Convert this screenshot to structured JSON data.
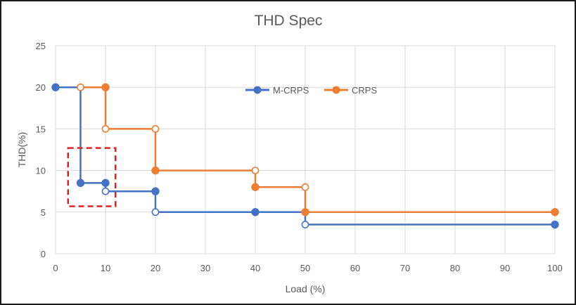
{
  "chart_data": {
    "type": "line",
    "title": "THD Spec",
    "xlabel": "Load (%)",
    "ylabel": "THD(%)",
    "xlim": [
      0,
      100
    ],
    "ylim": [
      0,
      25
    ],
    "x_ticks": [
      0,
      10,
      20,
      30,
      40,
      50,
      60,
      70,
      80,
      90,
      100
    ],
    "y_ticks": [
      0,
      5,
      10,
      15,
      20,
      25
    ],
    "grid": true,
    "legend_position": "top-center",
    "series": [
      {
        "name": "M-CRPS",
        "color": "#4472C4",
        "line": [
          [
            0,
            20
          ],
          [
            5,
            20
          ],
          [
            5,
            8.5
          ],
          [
            10,
            8.5
          ],
          [
            10,
            7.5
          ],
          [
            20,
            7.5
          ],
          [
            20,
            5
          ],
          [
            50,
            5
          ],
          [
            50,
            3.5
          ],
          [
            100,
            3.5
          ]
        ],
        "markers": [
          {
            "x": 0,
            "y": 20,
            "filled": true
          },
          {
            "x": 5,
            "y": 8.5,
            "filled": true
          },
          {
            "x": 10,
            "y": 8.5,
            "filled": true
          },
          {
            "x": 10,
            "y": 7.5,
            "filled": false
          },
          {
            "x": 20,
            "y": 7.5,
            "filled": true
          },
          {
            "x": 20,
            "y": 5,
            "filled": false
          },
          {
            "x": 40,
            "y": 5,
            "filled": true
          },
          {
            "x": 50,
            "y": 3.5,
            "filled": false
          },
          {
            "x": 100,
            "y": 3.5,
            "filled": true
          }
        ]
      },
      {
        "name": "CRPS",
        "color": "#ED7D31",
        "line": [
          [
            5,
            20
          ],
          [
            10,
            20
          ],
          [
            10,
            15
          ],
          [
            20,
            15
          ],
          [
            20,
            10
          ],
          [
            40,
            10
          ],
          [
            40,
            8
          ],
          [
            50,
            8
          ],
          [
            50,
            5
          ],
          [
            100,
            5
          ]
        ],
        "markers": [
          {
            "x": 5,
            "y": 20,
            "filled": false
          },
          {
            "x": 10,
            "y": 20,
            "filled": true
          },
          {
            "x": 10,
            "y": 15,
            "filled": false
          },
          {
            "x": 20,
            "y": 15,
            "filled": false
          },
          {
            "x": 20,
            "y": 10,
            "filled": true
          },
          {
            "x": 40,
            "y": 10,
            "filled": false
          },
          {
            "x": 40,
            "y": 8,
            "filled": true
          },
          {
            "x": 50,
            "y": 8,
            "filled": false
          },
          {
            "x": 50,
            "y": 5,
            "filled": true
          },
          {
            "x": 100,
            "y": 5,
            "filled": true
          }
        ]
      }
    ],
    "annotations": [
      {
        "type": "dashed-rectangle",
        "color": "#E02020",
        "x_range": [
          2.5,
          12
        ],
        "y_range": [
          5.7,
          12.7
        ]
      }
    ]
  }
}
